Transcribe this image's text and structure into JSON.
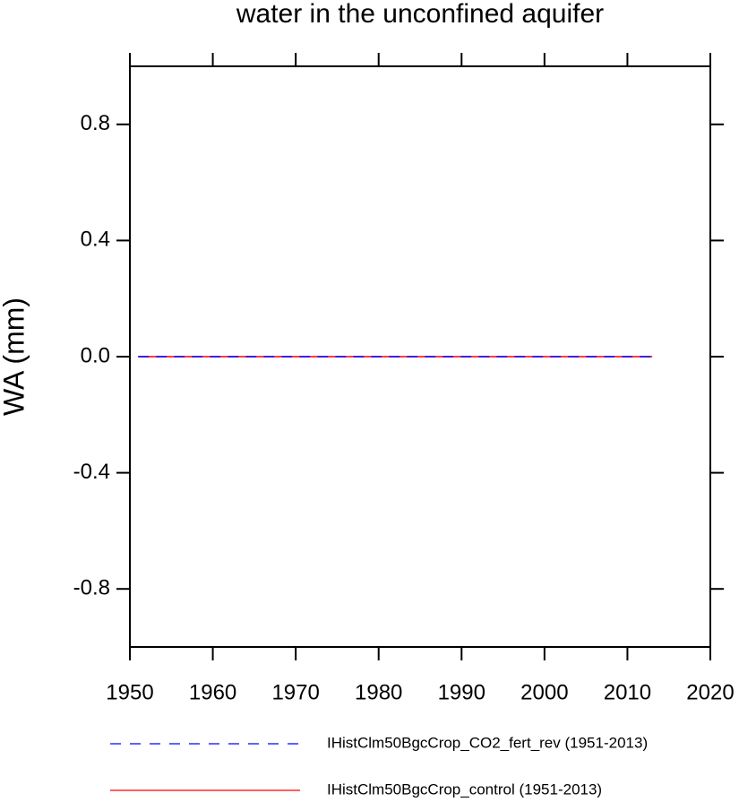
{
  "chart_data": {
    "type": "line",
    "title": "water in the unconfined aquifer",
    "y_label": "WA  (mm)",
    "x": [
      1951,
      1952,
      1953,
      1954,
      1955,
      1956,
      1957,
      1958,
      1959,
      1960,
      1961,
      1962,
      1963,
      1964,
      1965,
      1966,
      1967,
      1968,
      1969,
      1970,
      1971,
      1972,
      1973,
      1974,
      1975,
      1976,
      1977,
      1978,
      1979,
      1980,
      1981,
      1982,
      1983,
      1984,
      1985,
      1986,
      1987,
      1988,
      1989,
      1990,
      1991,
      1992,
      1993,
      1994,
      1995,
      1996,
      1997,
      1998,
      1999,
      2000,
      2001,
      2002,
      2003,
      2004,
      2005,
      2006,
      2007,
      2008,
      2009,
      2010,
      2011,
      2012,
      2013
    ],
    "series": [
      {
        "name": "IHistClm50BgcCrop_CO2_fert_rev (1951-2013)",
        "color": "#0000ff",
        "dashed": true,
        "values": [
          0,
          0,
          0,
          0,
          0,
          0,
          0,
          0,
          0,
          0,
          0,
          0,
          0,
          0,
          0,
          0,
          0,
          0,
          0,
          0,
          0,
          0,
          0,
          0,
          0,
          0,
          0,
          0,
          0,
          0,
          0,
          0,
          0,
          0,
          0,
          0,
          0,
          0,
          0,
          0,
          0,
          0,
          0,
          0,
          0,
          0,
          0,
          0,
          0,
          0,
          0,
          0,
          0,
          0,
          0,
          0,
          0,
          0,
          0,
          0,
          0,
          0,
          0
        ]
      },
      {
        "name": "IHistClm50BgcCrop_control (1951-2013)",
        "color": "#ff0000",
        "dashed": false,
        "values": [
          0,
          0,
          0,
          0,
          0,
          0,
          0,
          0,
          0,
          0,
          0,
          0,
          0,
          0,
          0,
          0,
          0,
          0,
          0,
          0,
          0,
          0,
          0,
          0,
          0,
          0,
          0,
          0,
          0,
          0,
          0,
          0,
          0,
          0,
          0,
          0,
          0,
          0,
          0,
          0,
          0,
          0,
          0,
          0,
          0,
          0,
          0,
          0,
          0,
          0,
          0,
          0,
          0,
          0,
          0,
          0,
          0,
          0,
          0,
          0,
          0,
          0,
          0
        ]
      }
    ],
    "xlim": [
      1950,
      2020
    ],
    "xticks": [
      1950,
      1960,
      1970,
      1980,
      1990,
      2000,
      2010,
      2020
    ],
    "ylim": [
      -1,
      1
    ],
    "yticks": [
      -0.8,
      -0.4,
      {
        "value": 0,
        "label": "0.0"
      },
      0.4,
      0.8
    ],
    "grid": false,
    "legend": "bottom"
  }
}
